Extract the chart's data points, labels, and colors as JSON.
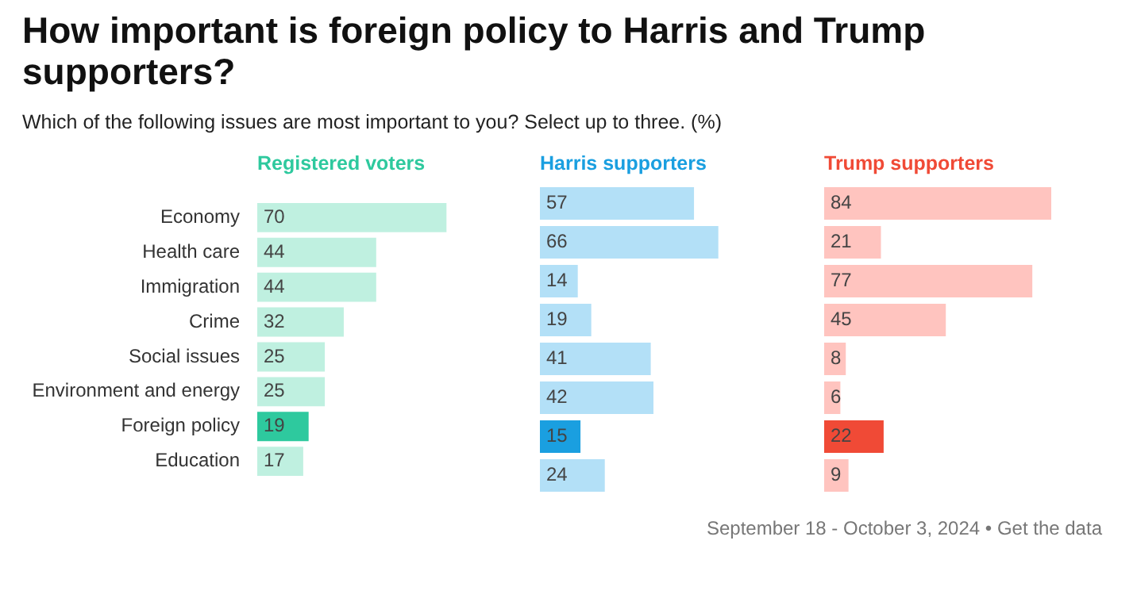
{
  "chart_data": [
    {
      "type": "bar",
      "orientation": "horizontal",
      "title": "How important is foreign policy to Harris and Trump supporters?",
      "subtitle": "Which of the following issues are most important to you? Select up to three. (%)",
      "annotations": [
        "September 18 - October 3, 2024 • Get the data"
      ],
      "categories": [
        "Economy",
        "Health care",
        "Immigration",
        "Crime",
        "Social issues",
        "Environment and energy",
        "Foreign policy",
        "Education"
      ],
      "tick_labels": "y",
      "data_labels": true,
      "legend": false,
      "series": [
        {
          "name": "Registered voters",
          "values": [
            70,
            44,
            44,
            32,
            25,
            25,
            19,
            17
          ],
          "colors": [
            "#bff0e0",
            "#bff0e0",
            "#bff0e0",
            "#bff0e0",
            "#bff0e0",
            "#bff0e0",
            "#2ec99e",
            "#bff0e0"
          ]
        }
      ]
    },
    {
      "type": "bar",
      "orientation": "horizontal",
      "categories": [
        null,
        null,
        null,
        null,
        null,
        null,
        null,
        null
      ],
      "tick_labels": false,
      "data_labels": true,
      "legend": false,
      "series": [
        {
          "name": "Harris supporters",
          "values": [
            57,
            66,
            14,
            19,
            41,
            42,
            15,
            24
          ],
          "colors": [
            "#b3e0f7",
            "#b3e0f7",
            "#b3e0f7",
            "#b3e0f7",
            "#b3e0f7",
            "#b3e0f7",
            "#1a9fe0",
            "#b3e0f7"
          ]
        }
      ]
    },
    {
      "type": "bar",
      "orientation": "horizontal",
      "categories": [
        null,
        null,
        null,
        null,
        null,
        null,
        null,
        null
      ],
      "tick_labels": false,
      "data_labels": true,
      "legend": false,
      "series": [
        {
          "name": "Trump supporters",
          "values": [
            84,
            21,
            77,
            45,
            8,
            6,
            22,
            9
          ],
          "colors": [
            "#ffc4bf",
            "#ffc4bf",
            "#ffc4bf",
            "#ffc4bf",
            "#ffc4bf",
            "#ffc4bf",
            "#f04a36",
            "#ffc4bf"
          ]
        }
      ]
    }
  ]
}
